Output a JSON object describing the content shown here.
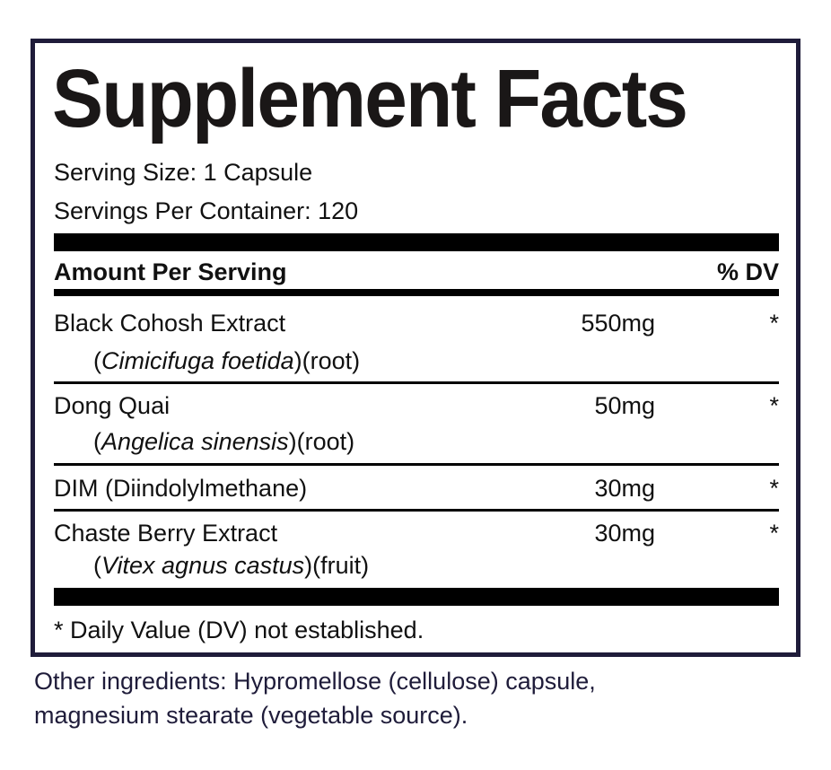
{
  "label": {
    "title": "Supplement Facts",
    "serving_size": "Serving Size: 1 Capsule",
    "servings_per_container": "Servings Per Container: 120",
    "header_amount": "Amount Per Serving",
    "header_dv": "% DV",
    "ingredients": [
      {
        "name": "Black Cohosh Extract",
        "latin": "Cimicifuga foetida",
        "part": "(root)",
        "amount": "550mg",
        "dv": "*"
      },
      {
        "name": "Dong Quai",
        "latin": "Angelica sinensis",
        "part": "(root)",
        "amount": "50mg",
        "dv": "*"
      },
      {
        "name": "DIM (Diindolylmethane)",
        "amount": "30mg",
        "dv": "*"
      },
      {
        "name": "Chaste Berry Extract",
        "latin": "Vitex agnus castus",
        "part": "(fruit)",
        "amount": "30mg",
        "dv": "*"
      }
    ],
    "footnote": "* Daily Value (DV) not established.",
    "border_color": "#1f1c3a"
  },
  "other_ingredients": {
    "line1": "Other ingredients: Hypromellose (cellulose) capsule,",
    "line2": "magnesium stearate (vegetable source)."
  }
}
